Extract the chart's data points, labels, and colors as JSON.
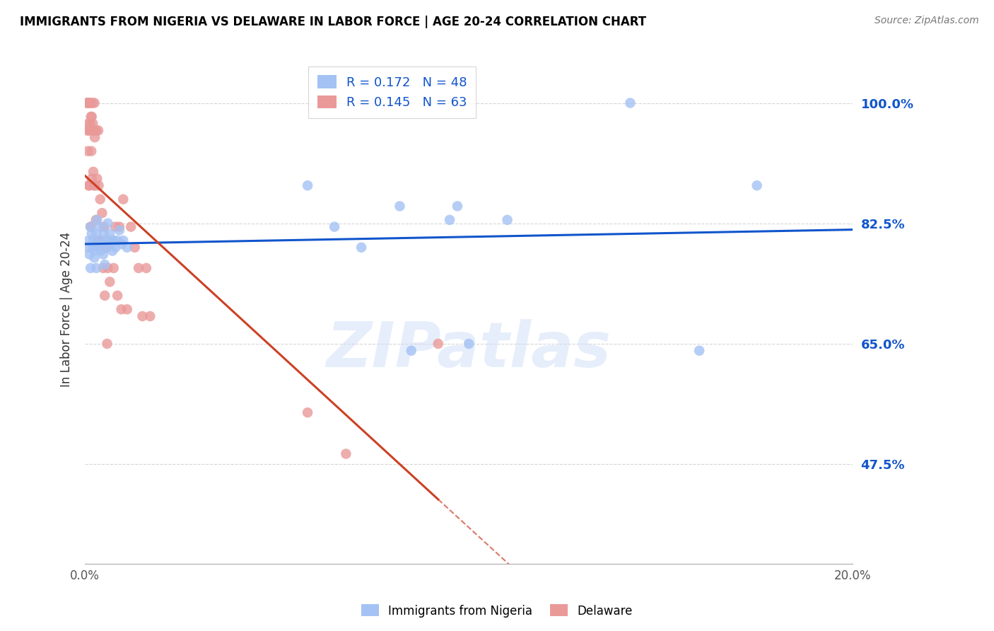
{
  "title": "IMMIGRANTS FROM NIGERIA VS DELAWARE IN LABOR FORCE | AGE 20-24 CORRELATION CHART",
  "source": "Source: ZipAtlas.com",
  "ylabel": "In Labor Force | Age 20-24",
  "yticks": [
    0.475,
    0.65,
    0.825,
    1.0
  ],
  "ytick_labels": [
    "47.5%",
    "65.0%",
    "82.5%",
    "100.0%"
  ],
  "watermark": "ZIPatlas",
  "legend_blue_r": "R = 0.172",
  "legend_blue_n": "N = 48",
  "legend_pink_r": "R = 0.145",
  "legend_pink_n": "N = 63",
  "blue_color": "#a4c2f4",
  "pink_color": "#ea9999",
  "blue_line_color": "#1155cc",
  "pink_line_color": "#cc4125",
  "background_color": "#ffffff",
  "grid_color": "#cccccc",
  "title_color": "#000000",
  "tick_label_color": "#1155cc",
  "xlim": [
    0.0,
    0.2
  ],
  "ylim": [
    0.33,
    1.07
  ],
  "nigeria_x": [
    0.0008,
    0.001,
    0.0012,
    0.0015,
    0.0015,
    0.0018,
    0.002,
    0.0022,
    0.0025,
    0.0025,
    0.0028,
    0.003,
    0.003,
    0.0032,
    0.0035,
    0.0038,
    0.004,
    0.0042,
    0.0045,
    0.0048,
    0.005,
    0.0052,
    0.0055,
    0.0058,
    0.006,
    0.0065,
    0.0068,
    0.007,
    0.0072,
    0.0075,
    0.008,
    0.0085,
    0.009,
    0.0095,
    0.01,
    0.011,
    0.058,
    0.065,
    0.072,
    0.082,
    0.085,
    0.095,
    0.097,
    0.1,
    0.11,
    0.142,
    0.16,
    0.175
  ],
  "nigeria_y": [
    0.79,
    0.8,
    0.78,
    0.82,
    0.76,
    0.81,
    0.79,
    0.8,
    0.785,
    0.775,
    0.795,
    0.81,
    0.76,
    0.83,
    0.79,
    0.8,
    0.82,
    0.785,
    0.795,
    0.78,
    0.81,
    0.765,
    0.8,
    0.79,
    0.825,
    0.81,
    0.795,
    0.8,
    0.785,
    0.8,
    0.79,
    0.8,
    0.815,
    0.795,
    0.8,
    0.79,
    0.88,
    0.82,
    0.79,
    0.85,
    0.64,
    0.83,
    0.85,
    0.65,
    0.83,
    1.0,
    0.64,
    0.88
  ],
  "delaware_x": [
    0.0005,
    0.0006,
    0.0007,
    0.0008,
    0.0008,
    0.0009,
    0.001,
    0.001,
    0.0011,
    0.0012,
    0.0012,
    0.0013,
    0.0014,
    0.0015,
    0.0015,
    0.0016,
    0.0017,
    0.0018,
    0.0018,
    0.0019,
    0.002,
    0.0021,
    0.0022,
    0.0023,
    0.0024,
    0.0025,
    0.0026,
    0.0027,
    0.0028,
    0.0029,
    0.003,
    0.0032,
    0.0034,
    0.0035,
    0.0036,
    0.0038,
    0.004,
    0.0042,
    0.0045,
    0.0048,
    0.005,
    0.0052,
    0.0055,
    0.0058,
    0.006,
    0.0065,
    0.007,
    0.0075,
    0.008,
    0.0085,
    0.009,
    0.0095,
    0.01,
    0.011,
    0.012,
    0.013,
    0.014,
    0.015,
    0.016,
    0.017,
    0.058,
    0.068,
    0.092
  ],
  "delaware_y": [
    1.0,
    0.96,
    1.0,
    0.93,
    1.0,
    0.97,
    1.0,
    0.88,
    0.96,
    1.0,
    0.88,
    0.96,
    0.97,
    1.0,
    0.82,
    0.98,
    0.93,
    0.89,
    0.98,
    0.96,
    1.0,
    0.97,
    0.9,
    0.96,
    0.88,
    1.0,
    0.95,
    0.88,
    0.96,
    0.83,
    0.96,
    0.89,
    0.8,
    0.96,
    0.88,
    0.8,
    0.86,
    0.8,
    0.84,
    0.76,
    0.82,
    0.72,
    0.79,
    0.65,
    0.76,
    0.74,
    0.8,
    0.76,
    0.82,
    0.72,
    0.82,
    0.7,
    0.86,
    0.7,
    0.82,
    0.79,
    0.76,
    0.69,
    0.76,
    0.69,
    0.55,
    0.49,
    0.65
  ]
}
